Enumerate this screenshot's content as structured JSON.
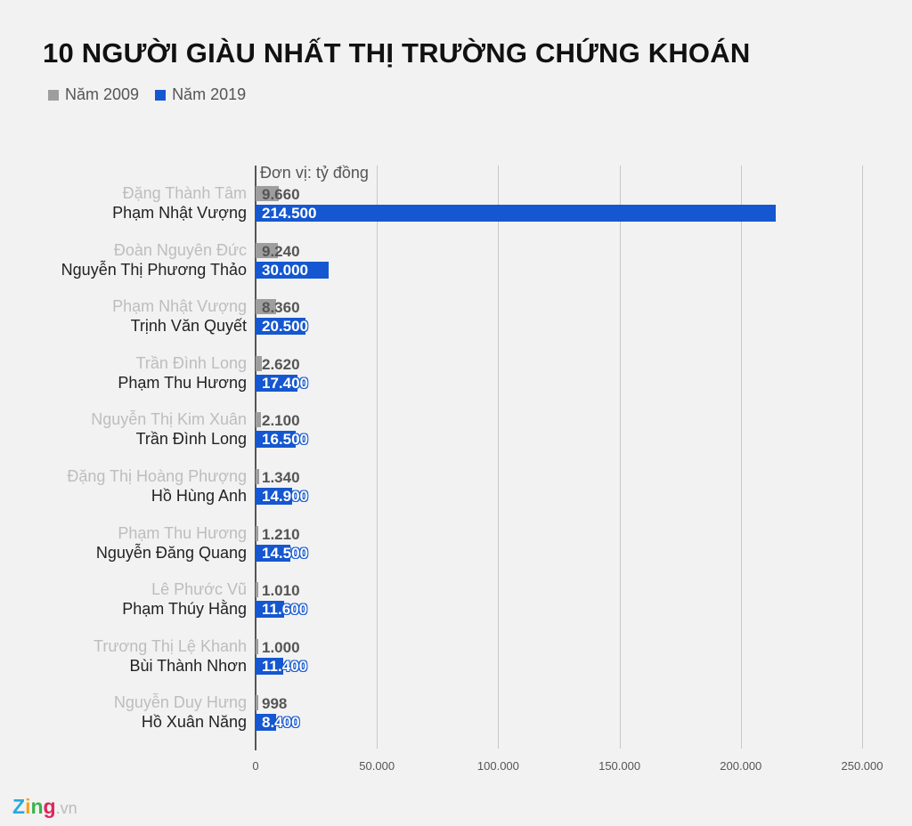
{
  "chart_data": {
    "type": "bar",
    "orientation": "horizontal",
    "title": "10 NGƯỜI GIÀU NHẤT THỊ TRƯỜNG CHỨNG KHOÁN",
    "unit_label": "Đơn vị: tỷ đồng",
    "xlim": [
      0,
      250000
    ],
    "x_ticks": [
      "0",
      "50.000",
      "100.000",
      "150.000",
      "200.000",
      "250.000"
    ],
    "x_tick_values": [
      0,
      50000,
      100000,
      150000,
      200000,
      250000
    ],
    "grid": true,
    "legend_position": "top-left",
    "series": [
      {
        "name": "Năm 2009",
        "color": "#9e9e9e",
        "names": [
          "Đặng Thành Tâm",
          "Đoàn Nguyên Đức",
          "Phạm Nhật Vượng",
          "Trần Đình Long",
          "Nguyễn Thị Kim Xuân",
          "Đặng Thị Hoàng Phượng",
          "Phạm Thu Hương",
          "Lê Phước Vũ",
          "Trương Thị Lệ Khanh",
          "Nguyễn Duy Hưng"
        ],
        "values": [
          9660,
          9240,
          8360,
          2620,
          2100,
          1340,
          1210,
          1010,
          1000,
          998
        ],
        "labels": [
          "9.660",
          "9.240",
          "8.360",
          "2.620",
          "2.100",
          "1.340",
          "1.210",
          "1.010",
          "1.000",
          "998"
        ]
      },
      {
        "name": "Năm 2019",
        "color": "#1557d0",
        "names": [
          "Phạm Nhật Vượng",
          "Nguyễn Thị Phương Thảo",
          "Trịnh Văn Quyết",
          "Phạm Thu Hương",
          "Trần Đình Long",
          "Hồ Hùng Anh",
          "Nguyễn Đăng Quang",
          "Phạm Thúy Hằng",
          "Bùi Thành Nhơn",
          "Hồ Xuân Năng"
        ],
        "values": [
          214500,
          30000,
          20500,
          17400,
          16500,
          14900,
          14500,
          11600,
          11400,
          8400
        ],
        "labels": [
          "214.500",
          "30.000",
          "20.500",
          "17.400",
          "16.500",
          "14.900",
          "14.500",
          "11.600",
          "11.400",
          "8.400"
        ]
      }
    ]
  },
  "logo": {
    "text": "Zing.vn"
  }
}
